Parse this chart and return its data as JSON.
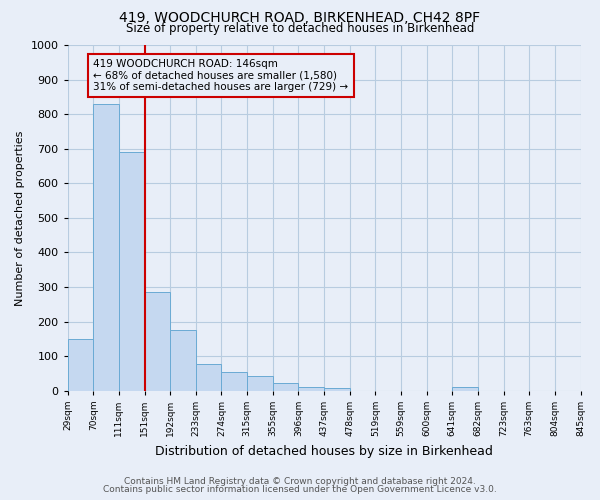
{
  "title1": "419, WOODCHURCH ROAD, BIRKENHEAD, CH42 8PF",
  "title2": "Size of property relative to detached houses in Birkenhead",
  "xlabel": "Distribution of detached houses by size in Birkenhead",
  "ylabel": "Number of detached properties",
  "bin_labels": [
    "29sqm",
    "70sqm",
    "111sqm",
    "151sqm",
    "192sqm",
    "233sqm",
    "274sqm",
    "315sqm",
    "355sqm",
    "396sqm",
    "437sqm",
    "478sqm",
    "519sqm",
    "559sqm",
    "600sqm",
    "641sqm",
    "682sqm",
    "723sqm",
    "763sqm",
    "804sqm",
    "845sqm"
  ],
  "bar_heights": [
    150,
    830,
    690,
    285,
    175,
    78,
    55,
    43,
    22,
    12,
    9,
    0,
    0,
    0,
    0,
    10,
    0,
    0,
    0,
    0
  ],
  "bar_color": "#c5d8f0",
  "bar_edge_color": "#6aaad4",
  "annotation_line1": "419 WOODCHURCH ROAD: 146sqm",
  "annotation_line2": "← 68% of detached houses are smaller (1,580)",
  "annotation_line3": "31% of semi-detached houses are larger (729) →",
  "annotation_box_color": "#cc0000",
  "vline_x": 3.0,
  "vline_color": "#cc0000",
  "ylim": [
    0,
    1000
  ],
  "yticks": [
    0,
    100,
    200,
    300,
    400,
    500,
    600,
    700,
    800,
    900,
    1000
  ],
  "footer1": "Contains HM Land Registry data © Crown copyright and database right 2024.",
  "footer2": "Contains public sector information licensed under the Open Government Licence v3.0.",
  "bg_color": "#e8eef8",
  "plot_bg_color": "#e8eef8",
  "grid_color": "#b8cce0"
}
